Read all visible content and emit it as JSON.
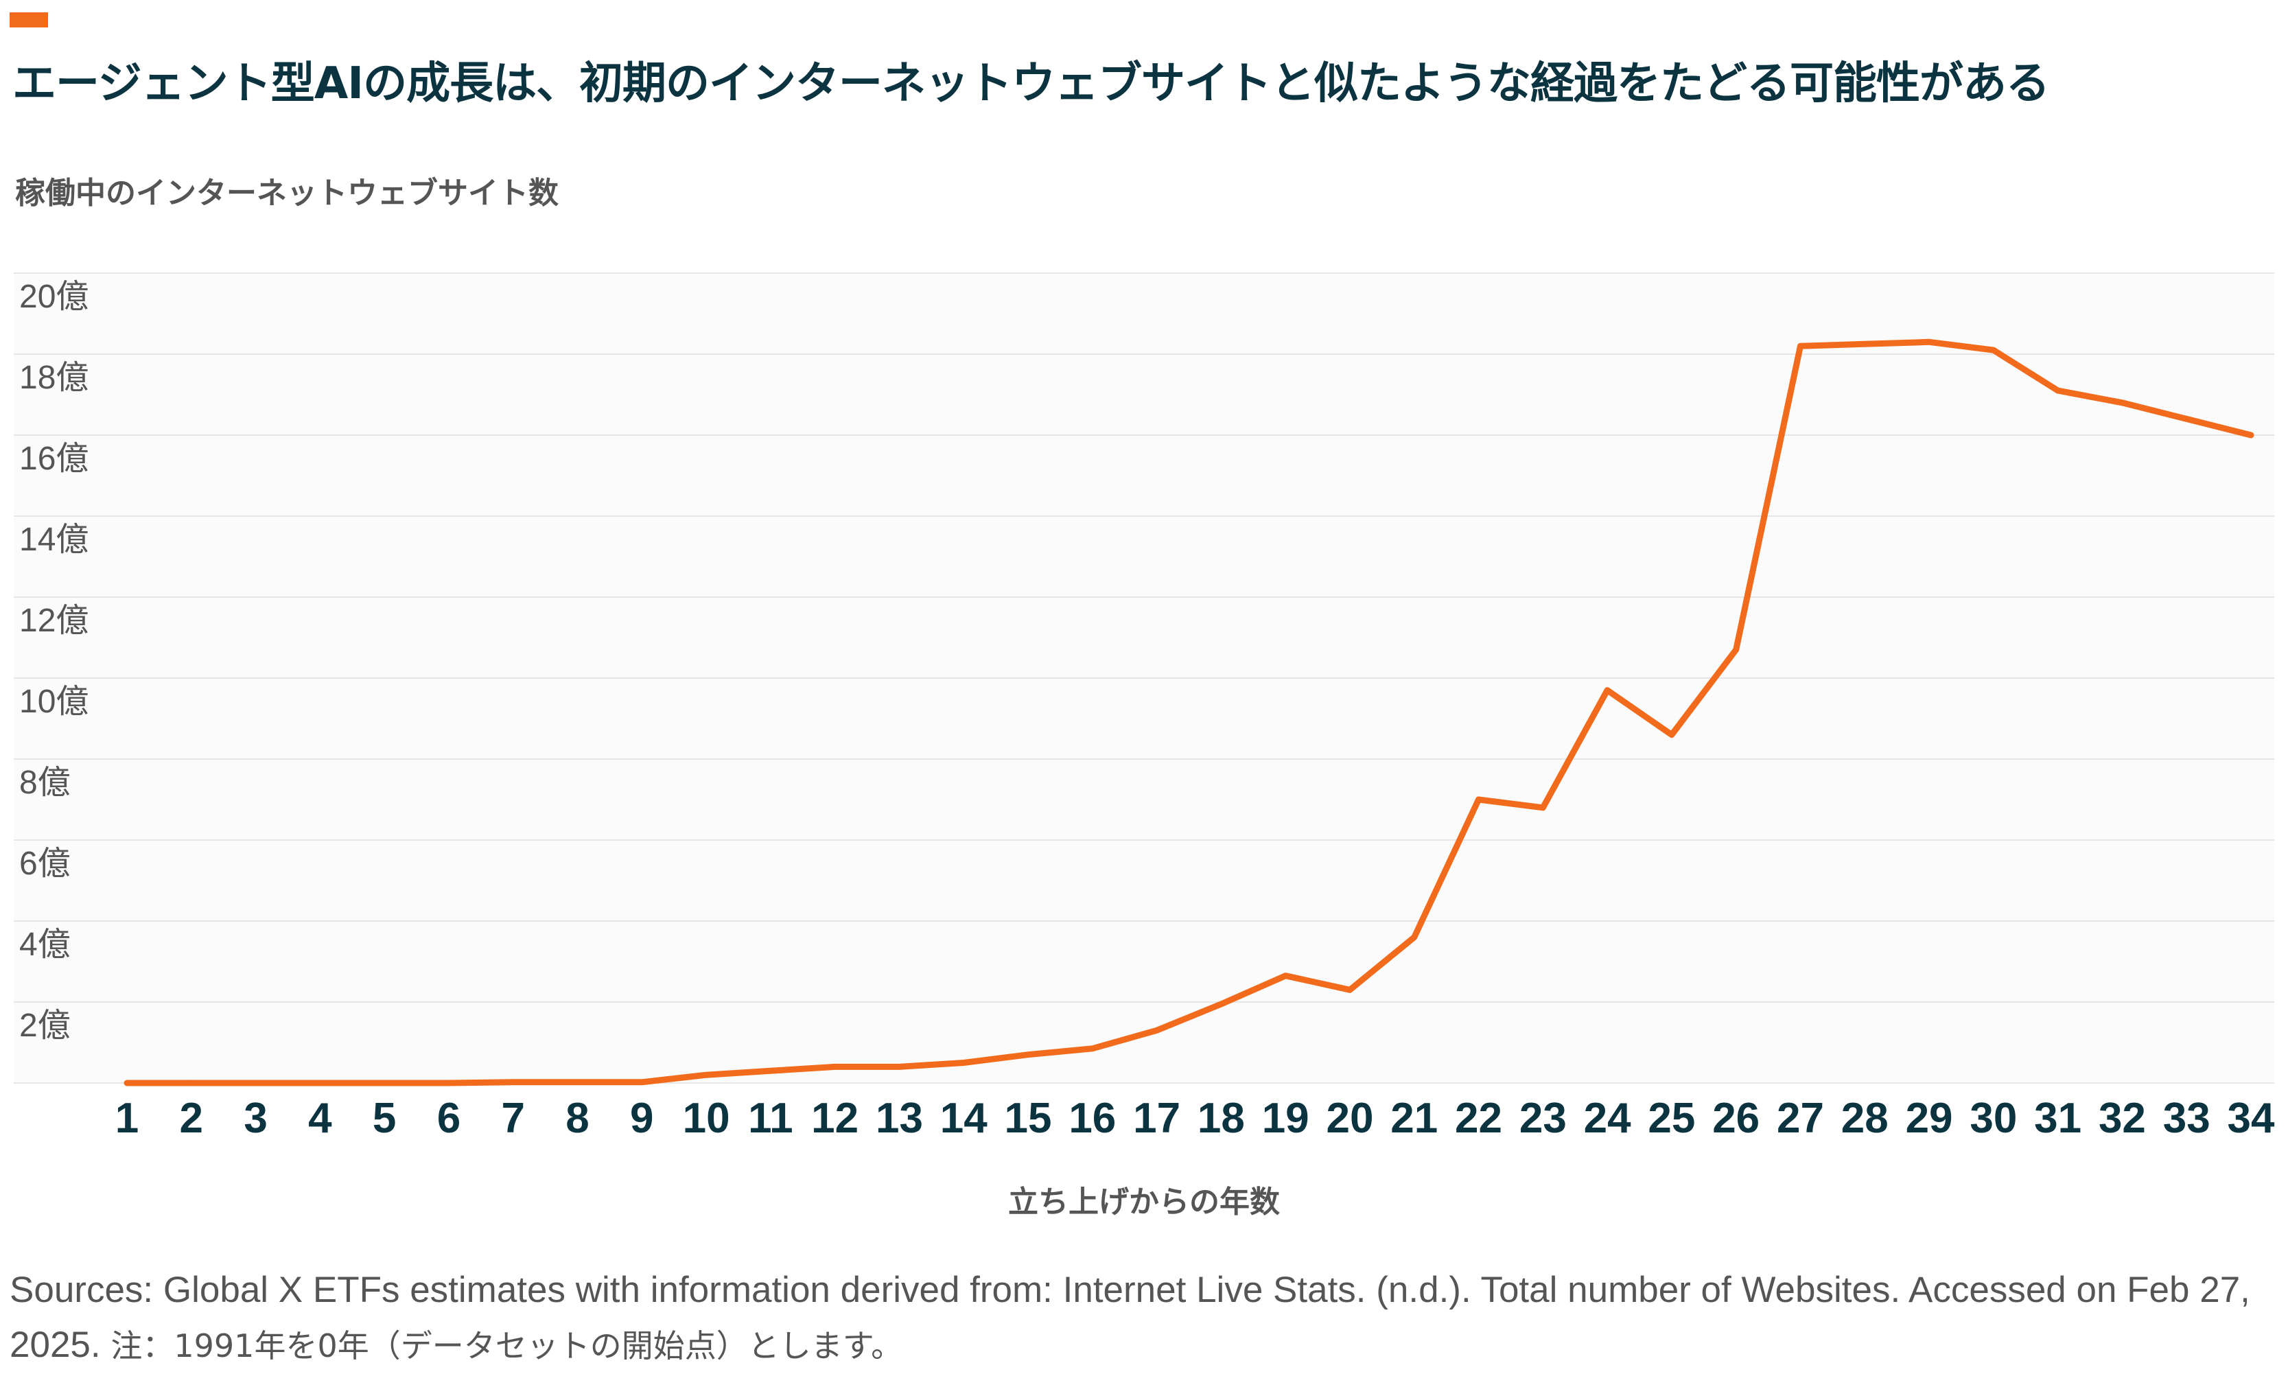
{
  "header": {
    "title": "エージェント型AIの成長は、初期のインターネットウェブサイトと似たような経過をたどる可能性がある"
  },
  "footer": {
    "source": "Sources: Global X ETFs estimates with information derived from: Internet Live Stats. (n.d.). Total number of Websites. Accessed on Feb 27, 2025.",
    "note": "注：1991年を0年（データセットの開始点）とします。"
  },
  "colors": {
    "accent": "#f26a1b",
    "title": "#0b3340",
    "line": "#f26a1b",
    "grid": "#e6e6e6",
    "plot_bg": "#fafbfa"
  },
  "chart_data": {
    "type": "line",
    "ylabel": "稼働中のインターネットウェブサイト数",
    "xlabel": "立ち上げからの年数",
    "x": [
      1,
      2,
      3,
      4,
      5,
      6,
      7,
      8,
      9,
      10,
      11,
      12,
      13,
      14,
      15,
      16,
      17,
      18,
      19,
      20,
      21,
      22,
      23,
      24,
      25,
      26,
      27,
      28,
      29,
      30,
      31,
      32,
      33,
      34
    ],
    "series": [
      {
        "values": [
          0.0,
          0.0,
          0.0,
          0.0,
          0.0,
          0.0,
          0.02,
          0.02,
          0.02,
          0.2,
          0.3,
          0.4,
          0.4,
          0.5,
          0.7,
          0.85,
          1.3,
          1.95,
          2.65,
          2.3,
          3.6,
          7.0,
          6.8,
          9.7,
          8.6,
          10.7,
          18.2,
          18.25,
          18.3,
          18.1,
          17.1,
          16.8,
          16.4,
          16.0
        ]
      }
    ],
    "ylim": [
      0,
      20
    ],
    "yticks": [
      {
        "value": 2,
        "label": "2億"
      },
      {
        "value": 4,
        "label": "4億"
      },
      {
        "value": 6,
        "label": "6億"
      },
      {
        "value": 8,
        "label": "8億"
      },
      {
        "value": 10,
        "label": "10億"
      },
      {
        "value": 12,
        "label": "12億"
      },
      {
        "value": 14,
        "label": "14億"
      },
      {
        "value": 16,
        "label": "16億"
      },
      {
        "value": 18,
        "label": "18億"
      },
      {
        "value": 20,
        "label": "20億"
      }
    ],
    "grid": true,
    "legend": "none"
  }
}
